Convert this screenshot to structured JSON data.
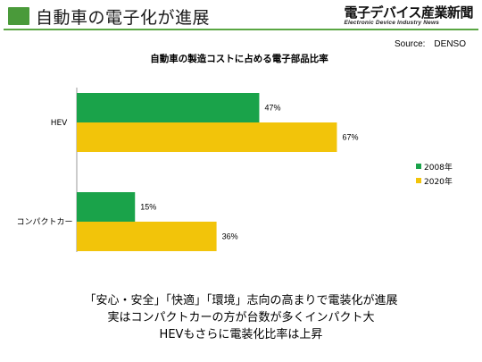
{
  "header": {
    "title": "自動車の電子化が進展",
    "logo": {
      "main": "電子デバイス産業新聞",
      "sub": "Electronic Device Industry News"
    },
    "source": "Source:　DENSO"
  },
  "colors": {
    "accent_green": "#4a9a3a",
    "series_2008": "#1aa34a",
    "series_2020": "#f2c40a"
  },
  "chart_data": {
    "type": "bar",
    "orientation": "horizontal",
    "title": "自動車の製造コストに占める電子部品比率",
    "categories": [
      "HEV",
      "コンパクトカー"
    ],
    "series": [
      {
        "name": "2008年",
        "values": [
          47,
          15
        ],
        "labels": [
          "47%",
          "15%"
        ]
      },
      {
        "name": "2020年",
        "values": [
          67,
          36
        ],
        "labels": [
          "67%",
          "36%"
        ]
      }
    ],
    "xlim": [
      0,
      100
    ],
    "unit": "%",
    "grid": false,
    "legend": "right"
  },
  "caption": {
    "lines": [
      "「安心・安全」「快適」「環境」志向の高まりで電装化が進展",
      "実はコンパクトカーの方が台数が多くインパクト大",
      "HEVもさらに電装化比率は上昇"
    ]
  }
}
